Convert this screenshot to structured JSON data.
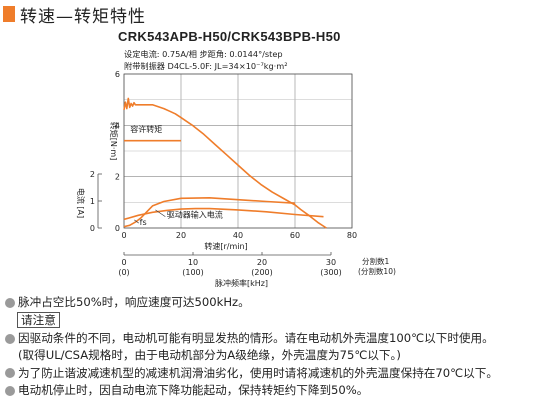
{
  "header": {
    "title": "转速—转矩特性",
    "accent_color": "#ef7d2b"
  },
  "model": "CRK543APB-H50/CRK543BPB-H50",
  "specs": {
    "line1": "设定电流: 0.75A/相 步距角: 0.0144°/step",
    "line2": "附带制振器 D4CL-5.0F: JL=34×10⁻⁷kg·m²"
  },
  "chart_data": {
    "type": "line",
    "x_axis": {
      "label": "转速[r/min]",
      "lim": [
        0,
        80
      ],
      "ticks": [
        "0",
        "20",
        "40",
        "60",
        "80"
      ]
    },
    "y_axis_torque": {
      "label": "转矩[N·m]",
      "lim": [
        0,
        6
      ],
      "ticks": [
        "0",
        "2",
        "4",
        "6"
      ]
    },
    "y_axis_current": {
      "label": "电流 [A]",
      "lim": [
        0,
        2
      ],
      "ticks": [
        "0",
        "1",
        "2"
      ]
    },
    "pulse_axis": {
      "label": "脉冲频率[kHz]",
      "ticks": [
        "0",
        "10",
        "20",
        "30"
      ],
      "tick_values": [
        0,
        100,
        200,
        300
      ],
      "tick_labels": [
        "(0)",
        "(100)",
        "(200)",
        "(300)"
      ],
      "division_label": "分割数1",
      "division_label2": "(分割数10)"
    },
    "series": [
      {
        "name": "驱动器输入电流",
        "axis": "current",
        "x": [
          0,
          5,
          10,
          15,
          20,
          25,
          30,
          40,
          50,
          60,
          70
        ],
        "y": [
          0.32,
          0.47,
          0.58,
          0.65,
          0.7,
          0.72,
          0.72,
          0.67,
          0.6,
          0.5,
          0.42
        ]
      },
      {
        "name": "fs",
        "axis": "current",
        "x": [
          0,
          2,
          4,
          6,
          8,
          10,
          14,
          20,
          30,
          40,
          50,
          60
        ],
        "y": [
          0.05,
          0.1,
          0.22,
          0.38,
          0.6,
          0.82,
          0.98,
          1.1,
          1.12,
          1.05,
          0.98,
          0.92
        ]
      },
      {
        "name": "torque",
        "axis": "torque",
        "x": [
          0,
          0.5,
          1,
          1.5,
          2,
          2.5,
          3,
          3.5,
          4,
          10,
          14,
          16,
          18,
          20,
          24,
          28,
          32,
          36,
          40,
          44,
          48,
          52,
          56,
          60,
          62,
          65,
          68,
          71
        ],
        "y": [
          4.6,
          4.9,
          4.65,
          5.05,
          4.7,
          4.85,
          4.75,
          4.88,
          4.8,
          4.8,
          4.65,
          4.55,
          4.45,
          4.3,
          4.0,
          3.65,
          3.25,
          2.85,
          2.45,
          2.05,
          1.7,
          1.4,
          1.15,
          0.9,
          0.72,
          0.48,
          0.22,
          0.0
        ]
      },
      {
        "name": "容许转矩",
        "axis": "torque",
        "x": [
          0,
          20
        ],
        "y": [
          3.4,
          3.4
        ]
      }
    ],
    "annotations": {
      "allowable_torque": "容许转矩",
      "driver_current": "驱动器输入电流",
      "fs": "fs"
    },
    "line_color": "#ef7d2b"
  },
  "notes": [
    "脉冲占空比50%时，响应速度可达500kHz。",
    "因驱动条件的不同，电动机可能有明显发热的情形。请在电动机外壳温度100℃以下时使用。",
    "(取得UL/CSA规格时，由于电动机部分为A级绝缘，外壳温度为75℃以下。)",
    "为了防止谐波减速机型的减速机润滑油劣化，使用时请将减速机的外壳温度保持在70℃以下。",
    "电动机停止时，因自动电流下降功能起动，保持转矩约下降到50%。"
  ],
  "notice_label": "请注意"
}
